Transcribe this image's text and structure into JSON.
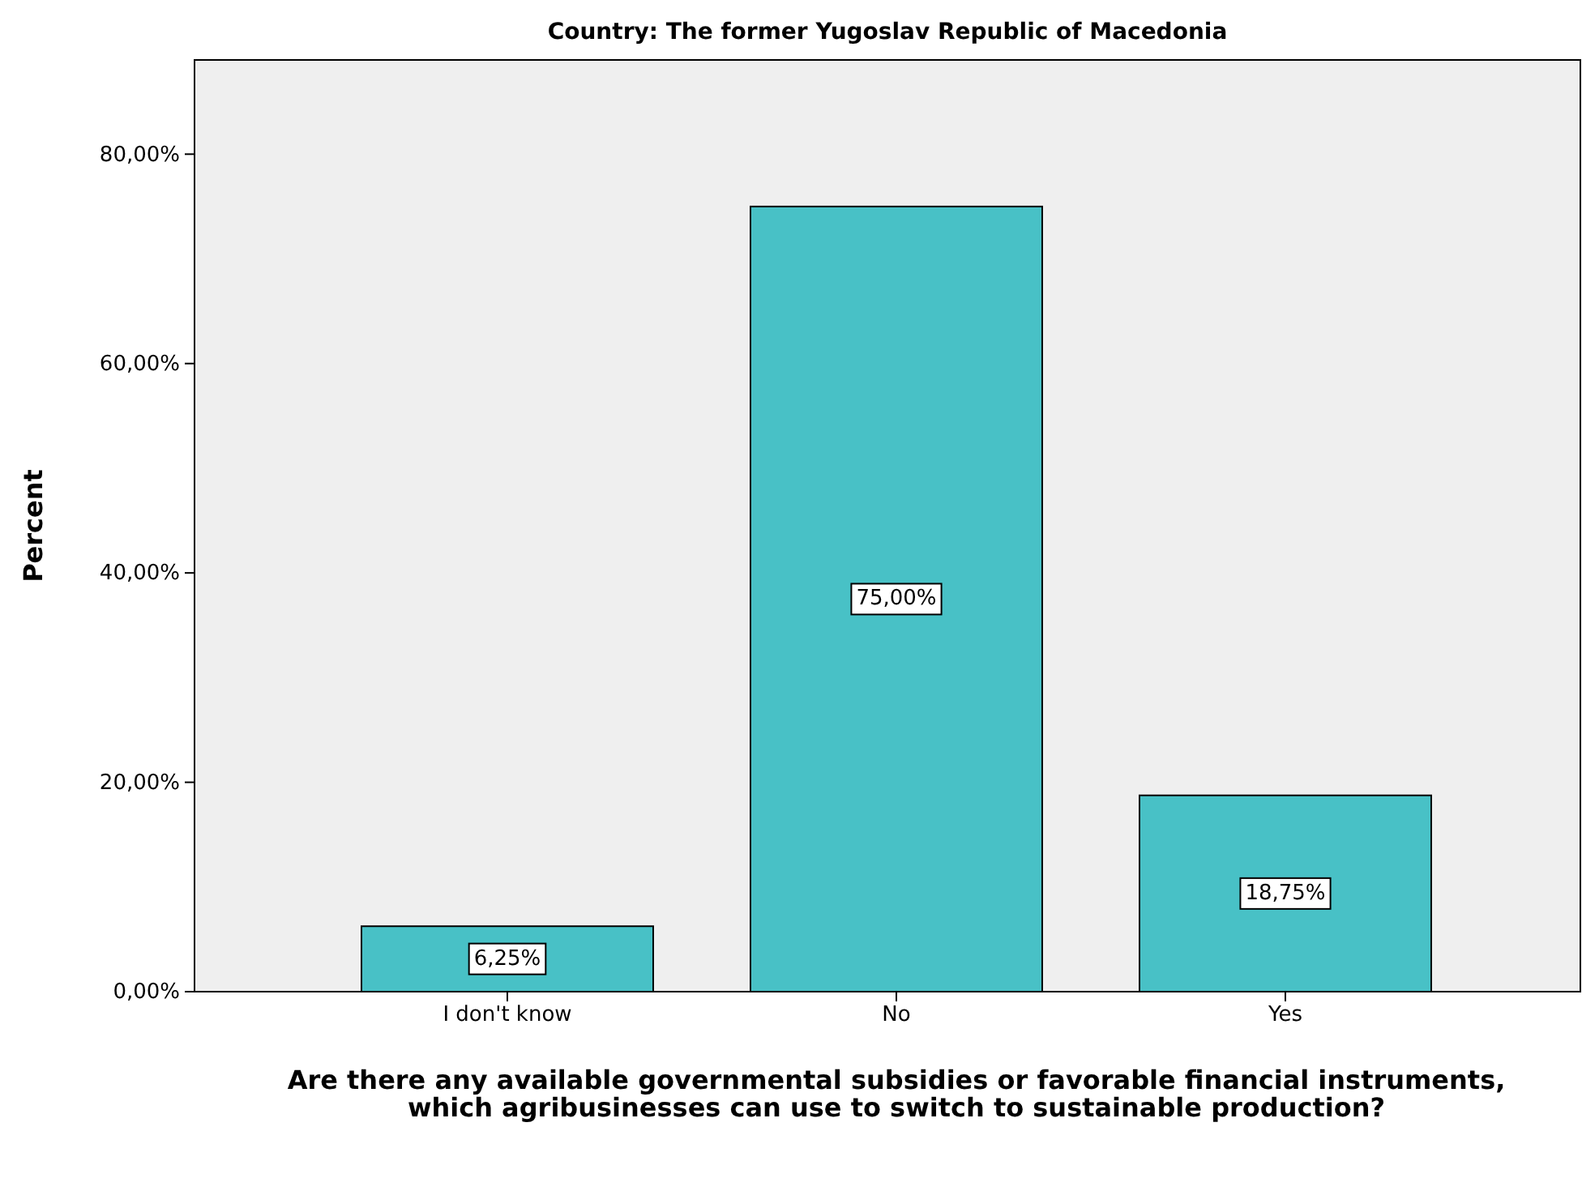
{
  "chart_data": {
    "type": "bar",
    "title": "Country: The former Yugoslav Republic of Macedonia",
    "xlabel": "Are there any available governmental subsidies or favorable financial instruments, which agribusinesses can use to switch to sustainable production?",
    "ylabel": "Percent",
    "categories": [
      "I don't know",
      "No",
      "Yes"
    ],
    "values": [
      6.25,
      75,
      18.75
    ],
    "value_labels": [
      "6,25%",
      "75,00%",
      "18,75%"
    ],
    "color": "#48c1c6",
    "ylim": [
      0,
      89
    ],
    "yticks": [
      {
        "value": 0,
        "label": "0,00%"
      },
      {
        "value": 20,
        "label": "20,00%"
      },
      {
        "value": 40,
        "label": "40,00%"
      },
      {
        "value": 60,
        "label": "60,00%"
      },
      {
        "value": 80,
        "label": "80,00%"
      }
    ],
    "grid": false
  }
}
